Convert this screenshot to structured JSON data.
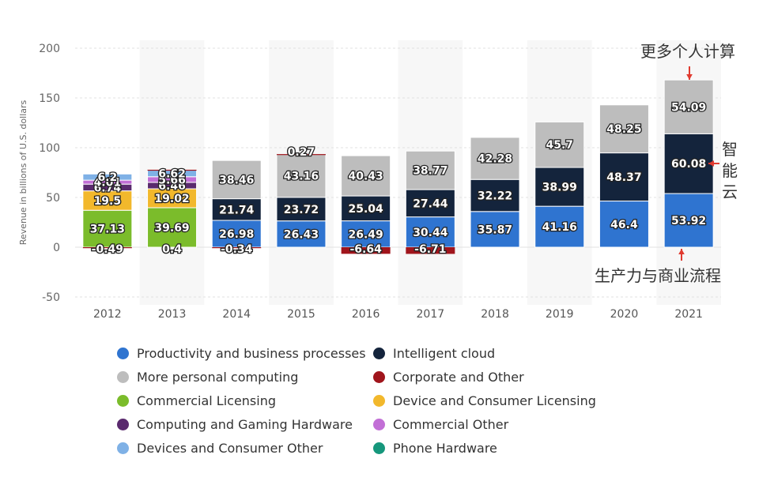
{
  "chart_data": {
    "type": "bar",
    "stacked": true,
    "title": "",
    "xlabel": "",
    "ylabel": "Revenue in billions of U.S. dollars",
    "ylim": [
      -50,
      200
    ],
    "yticks": [
      200,
      150,
      100,
      50,
      0,
      -50
    ],
    "grid": true,
    "legend_position": "bottom",
    "categories": [
      "2012",
      "2013",
      "2014",
      "2015",
      "2016",
      "2017",
      "2018",
      "2019",
      "2020",
      "2021"
    ],
    "series": [
      {
        "name": "Productivity and business processes",
        "color": "#2f74d0",
        "values": [
          null,
          null,
          26.98,
          26.43,
          26.49,
          30.44,
          35.87,
          41.16,
          46.4,
          53.92
        ]
      },
      {
        "name": "Intelligent cloud",
        "color": "#14243c",
        "values": [
          null,
          null,
          21.74,
          23.72,
          25.04,
          27.44,
          32.22,
          38.99,
          48.37,
          60.08
        ]
      },
      {
        "name": "More personal computing",
        "color": "#bdbdbd",
        "values": [
          null,
          null,
          38.46,
          43.16,
          40.43,
          38.77,
          42.28,
          45.7,
          48.25,
          54.09
        ]
      },
      {
        "name": "Corporate and Other",
        "color": "#a0151c",
        "values": [
          -0.49,
          0.4,
          -0.34,
          0.27,
          -6.64,
          -6.71,
          null,
          null,
          null,
          null
        ]
      },
      {
        "name": "Commercial Licensing",
        "color": "#7bbc2b",
        "values": [
          37.13,
          39.69,
          null,
          null,
          null,
          null,
          null,
          null,
          null,
          null
        ]
      },
      {
        "name": "Device and Consumer Licensing",
        "color": "#f2b82c",
        "values": [
          19.5,
          19.02,
          null,
          null,
          null,
          null,
          null,
          null,
          null,
          null
        ]
      },
      {
        "name": "Computing and Gaming Hardware",
        "color": "#5a2a6e",
        "values": [
          6.74,
          6.46,
          null,
          null,
          null,
          null,
          null,
          null,
          null,
          null
        ]
      },
      {
        "name": "Commercial Other",
        "color": "#c26fd6",
        "values": [
          4.01,
          5.66,
          null,
          null,
          null,
          null,
          null,
          null,
          null,
          null
        ]
      },
      {
        "name": "Devices and Consumer Other",
        "color": "#7fb1e6",
        "values": [
          6.2,
          6.62,
          null,
          null,
          null,
          null,
          null,
          null,
          null,
          null
        ]
      },
      {
        "name": "Phone Hardware",
        "color": "#16977c",
        "values": [
          null,
          null,
          null,
          null,
          null,
          null,
          null,
          null,
          null,
          null
        ]
      }
    ],
    "data_labels": {
      "2012": [
        "37.13",
        "19.5",
        "6.74",
        "4.01",
        "6.2",
        "-0.49"
      ],
      "2013": [
        "39.69",
        "19.02",
        "6.46",
        "5.66",
        "6.62",
        "0.4"
      ],
      "2015_corporate": "0.27"
    },
    "annotations": [
      {
        "text": "更多个人计算",
        "points_to": "More personal computing"
      },
      {
        "text": "智能云",
        "points_to": "Intelligent cloud"
      },
      {
        "text": "生产力与商业流程",
        "points_to": "Productivity and business processes"
      }
    ]
  }
}
